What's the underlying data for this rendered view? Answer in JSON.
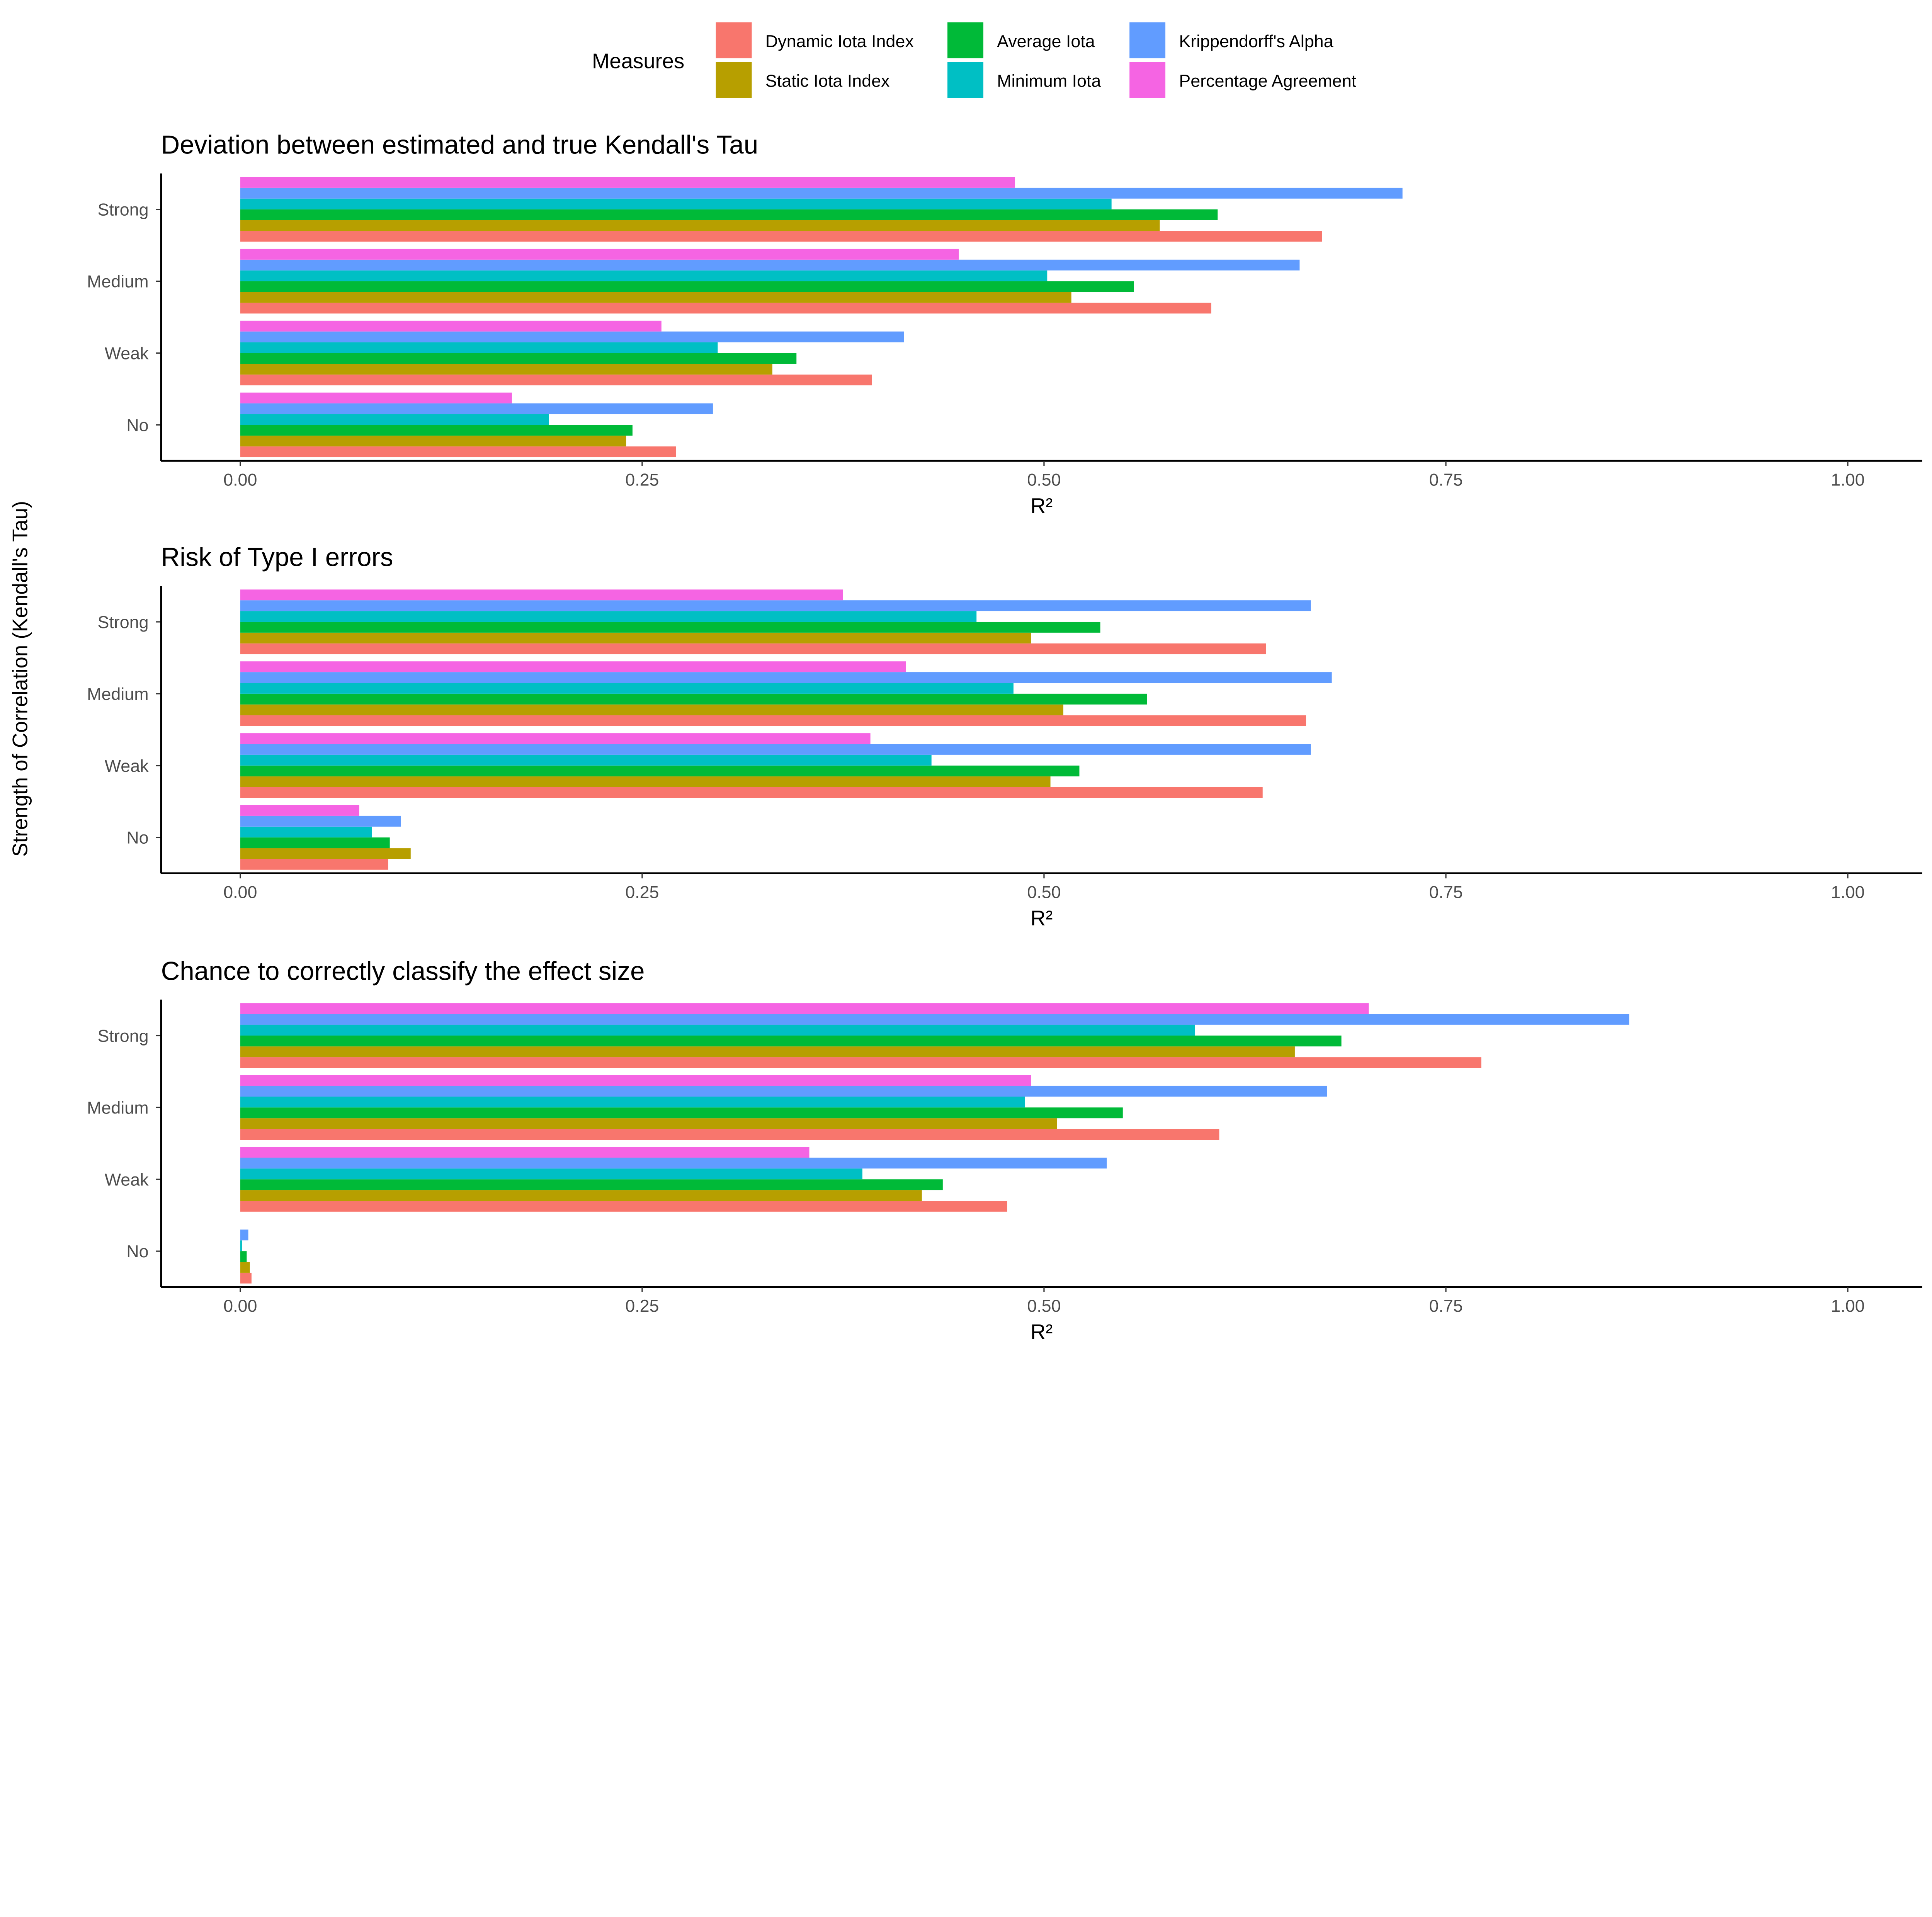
{
  "chart_data": {
    "type": "bar",
    "orientation": "horizontal",
    "ylabel": "Strength of Correlation (Kendall's Tau)",
    "legend": {
      "title": "Measures",
      "placement": "top",
      "entries": [
        {
          "name": "Dynamic Iota Index",
          "color": "#F8766D"
        },
        {
          "name": "Static Iota Index",
          "color": "#B79F00"
        },
        {
          "name": "Average Iota",
          "color": "#00BA38"
        },
        {
          "name": "Minimum Iota",
          "color": "#00BFC4"
        },
        {
          "name": "Krippendorff's Alpha",
          "color": "#619CFF"
        },
        {
          "name": "Percentage Agreement",
          "color": "#F564E3"
        }
      ]
    },
    "panels": [
      {
        "title": "Deviation between estimated and true Kendall's Tau",
        "xlabel": "R²",
        "xlim": [
          0,
          1
        ],
        "xticks": [
          "0.00",
          "0.25",
          "0.50",
          "0.75",
          "1.00"
        ],
        "categories": [
          "Strong",
          "Medium",
          "Weak",
          "No"
        ],
        "series": [
          {
            "name": "Dynamic Iota Index",
            "values": [
              0.673,
              0.604,
              0.393,
              0.271
            ]
          },
          {
            "name": "Static Iota Index",
            "values": [
              0.572,
              0.517,
              0.331,
              0.24
            ]
          },
          {
            "name": "Average Iota",
            "values": [
              0.608,
              0.556,
              0.346,
              0.244
            ]
          },
          {
            "name": "Minimum Iota",
            "values": [
              0.542,
              0.502,
              0.297,
              0.192
            ]
          },
          {
            "name": "Krippendorff's Alpha",
            "values": [
              0.723,
              0.659,
              0.413,
              0.294
            ]
          },
          {
            "name": "Percentage Agreement",
            "values": [
              0.482,
              0.447,
              0.262,
              0.169
            ]
          }
        ]
      },
      {
        "title": "Risk of Type I errors",
        "xlabel": "R²",
        "xlim": [
          0,
          1
        ],
        "xticks": [
          "0.00",
          "0.25",
          "0.50",
          "0.75",
          "1.00"
        ],
        "categories": [
          "Strong",
          "Medium",
          "Weak",
          "No"
        ],
        "series": [
          {
            "name": "Dynamic Iota Index",
            "values": [
              0.638,
              0.663,
              0.636,
              0.092
            ]
          },
          {
            "name": "Static Iota Index",
            "values": [
              0.492,
              0.512,
              0.504,
              0.106
            ]
          },
          {
            "name": "Average Iota",
            "values": [
              0.535,
              0.564,
              0.522,
              0.093
            ]
          },
          {
            "name": "Minimum Iota",
            "values": [
              0.458,
              0.481,
              0.43,
              0.082
            ]
          },
          {
            "name": "Krippendorff's Alpha",
            "values": [
              0.666,
              0.679,
              0.666,
              0.1
            ]
          },
          {
            "name": "Percentage Agreement",
            "values": [
              0.375,
              0.414,
              0.392,
              0.074
            ]
          }
        ]
      },
      {
        "title": "Chance to correctly classify the effect size",
        "xlabel": "R²",
        "xlim": [
          0,
          1
        ],
        "xticks": [
          "0.00",
          "0.25",
          "0.50",
          "0.75",
          "1.00"
        ],
        "categories": [
          "Strong",
          "Medium",
          "Weak",
          "No"
        ],
        "series": [
          {
            "name": "Dynamic Iota Index",
            "values": [
              0.772,
              0.609,
              0.477,
              0.007
            ]
          },
          {
            "name": "Static Iota Index",
            "values": [
              0.656,
              0.508,
              0.424,
              0.006
            ]
          },
          {
            "name": "Average Iota",
            "values": [
              0.685,
              0.549,
              0.437,
              0.004
            ]
          },
          {
            "name": "Minimum Iota",
            "values": [
              0.594,
              0.488,
              0.387,
              0.001
            ]
          },
          {
            "name": "Krippendorff's Alpha",
            "values": [
              0.864,
              0.676,
              0.539,
              0.005
            ]
          },
          {
            "name": "Percentage Agreement",
            "values": [
              0.702,
              0.492,
              0.354,
              0.0
            ]
          }
        ]
      }
    ]
  }
}
